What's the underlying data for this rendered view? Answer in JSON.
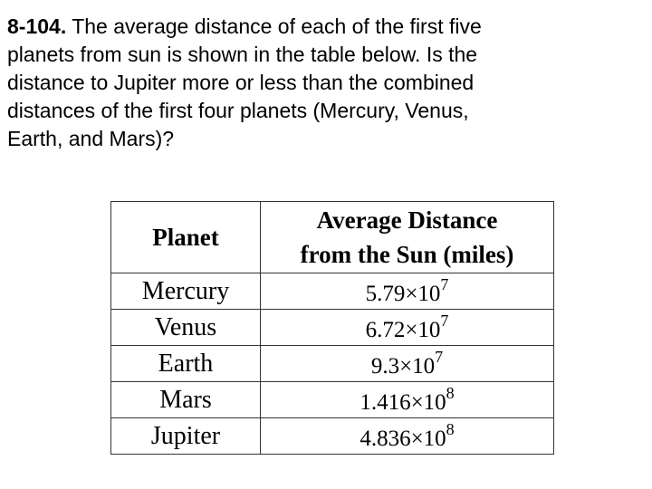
{
  "problem": {
    "number": "8-104.",
    "lines": [
      "The average distance of each of the first five",
      "planets from sun is shown in the table below.  Is the",
      "distance to Jupiter more or less than the combined",
      "distances of the first four planets (Mercury, Venus,",
      "Earth, and Mars)?"
    ]
  },
  "table": {
    "header": [
      "Planet",
      "Average Distance",
      "from the Sun (miles)"
    ],
    "rows": [
      [
        "Mercury",
        {
          "coefficient": "5.79×10",
          "exponent": "7"
        }
      ],
      [
        "Venus",
        {
          "coefficient": "6.72×10",
          "exponent": "7"
        }
      ],
      [
        "Earth",
        {
          "coefficient": "9.3×10",
          "exponent": "7"
        }
      ],
      [
        "Mars",
        {
          "coefficient": "1.416×10",
          "exponent": "8"
        }
      ],
      [
        "Jupiter",
        {
          "coefficient": "4.836×10",
          "exponent": "8"
        }
      ]
    ]
  }
}
